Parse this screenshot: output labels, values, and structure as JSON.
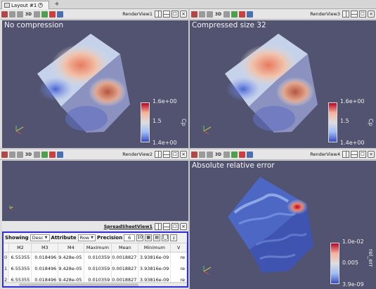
{
  "tabs": [
    {
      "label": "Layout #1"
    }
  ],
  "views": {
    "rv1": {
      "title": "RenderView1",
      "label": "No compression",
      "legend": {
        "title": "Cp",
        "max": "1.6e+00",
        "mid": "1.5",
        "min": "1.4e+00"
      }
    },
    "rv3": {
      "title": "RenderView3",
      "label": "Compressed size 32",
      "legend": {
        "title": "Cp",
        "max": "1.6e+00",
        "mid": "1.5",
        "min": "1.4e+00"
      }
    },
    "rv2": {
      "title": "RenderView2"
    },
    "rv4": {
      "title": "RenderView4",
      "label": "Absolute relative error",
      "legend": {
        "title": "rel_err",
        "max": "1.0e-02",
        "mid": "0.005",
        "min": "3.9e-09"
      }
    }
  },
  "spreadsheet": {
    "title": "SpreadSheetView1",
    "showing_label": "Showing",
    "showing_value": "Desc",
    "attribute_label": "Attribute",
    "attribute_value": "Row",
    "precision_label": "Precision",
    "precision_value": "6",
    "columns": [
      "M2",
      "M3",
      "M4",
      "Maximum",
      "Mean",
      "Minimum",
      "V"
    ],
    "rows": [
      {
        "index": "0",
        "cells": [
          "6.55355",
          "0.018496",
          "9.428e-05",
          "0.010359",
          "0.0018827",
          "3.93816e-09",
          "re"
        ]
      },
      {
        "index": "1",
        "cells": [
          "6.55355",
          "0.018496",
          "9.428e-05",
          "0.010359",
          "0.0018827",
          "3.93816e-09",
          "re"
        ]
      },
      {
        "index": "2",
        "cells": [
          "6.55355",
          "0.018496",
          "9.428e-05",
          "0.010359",
          "0.0018827",
          "3.93816e-09",
          "re"
        ]
      }
    ]
  },
  "colors": {
    "background": "#525370",
    "active_border": "#2f2fd8"
  }
}
